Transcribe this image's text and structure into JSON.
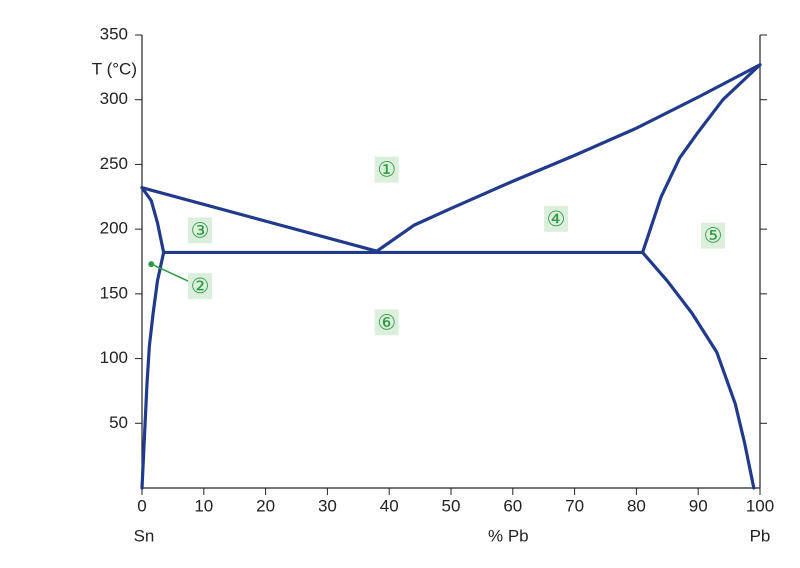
{
  "chart_data": {
    "type": "line",
    "y_label": "T (°C)",
    "x_label": "% Pb",
    "x_left_label": "Sn",
    "x_right_label": "Pb",
    "xlim": [
      0,
      100
    ],
    "ylim": [
      0,
      350
    ],
    "xticks": [
      0,
      10,
      20,
      30,
      40,
      50,
      60,
      70,
      80,
      90,
      100
    ],
    "yticks": [
      50,
      100,
      150,
      200,
      250,
      300,
      350
    ],
    "series": [
      {
        "color": "#213a8c",
        "x": [
          0,
          38
        ],
        "values": [
          232,
          183
        ]
      },
      {
        "color": "#213a8c",
        "x": [
          38,
          44,
          50,
          60,
          70,
          80,
          90,
          100
        ],
        "values": [
          183,
          203,
          216,
          237,
          257,
          278,
          302,
          327
        ]
      },
      {
        "color": "#213a8c",
        "x": [
          3.5,
          81
        ],
        "values": [
          182,
          182
        ]
      },
      {
        "color": "#213a8c",
        "x": [
          0,
          1.5,
          2.5,
          3.5
        ],
        "values": [
          232,
          222,
          205,
          182
        ]
      },
      {
        "color": "#213a8c",
        "x": [
          3.5,
          2.5,
          1.8,
          1.2,
          0.8,
          0.4,
          0
        ],
        "values": [
          182,
          160,
          135,
          110,
          80,
          40,
          0
        ]
      },
      {
        "color": "#213a8c",
        "x": [
          81,
          84,
          87,
          90,
          94,
          100
        ],
        "values": [
          182,
          225,
          255,
          275,
          300,
          327
        ]
      },
      {
        "color": "#213a8c",
        "x": [
          81,
          85,
          89,
          93,
          96,
          97.5,
          99
        ],
        "values": [
          182,
          160,
          135,
          105,
          65,
          35,
          0
        ]
      }
    ],
    "annotations": [
      {
        "text": "①",
        "x": 39.6,
        "y": 246
      },
      {
        "text": "②",
        "x": 9.4,
        "y": 156,
        "point": [
          1.5,
          173
        ]
      },
      {
        "text": "③",
        "x": 9.4,
        "y": 199
      },
      {
        "text": "④",
        "x": 67,
        "y": 208
      },
      {
        "text": "⑤",
        "x": 92.4,
        "y": 195
      },
      {
        "text": "⑥",
        "x": 39.6,
        "y": 128
      }
    ]
  }
}
